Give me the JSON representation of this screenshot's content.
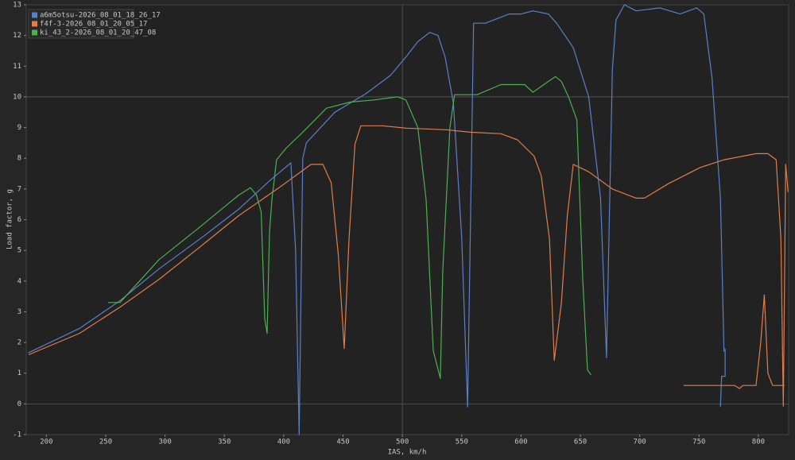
{
  "chart_data": {
    "type": "line",
    "xlabel": "IAS, km/h",
    "ylabel": "Load factor, g",
    "xlim": [
      183,
      825.5
    ],
    "ylim": [
      -1,
      13
    ],
    "xticks": [
      200,
      250,
      300,
      350,
      400,
      450,
      500,
      550,
      600,
      650,
      700,
      750,
      800
    ],
    "yticks": [
      -1,
      0,
      1,
      2,
      3,
      4,
      5,
      6,
      7,
      8,
      9,
      10,
      11,
      12,
      13
    ],
    "grid": {
      "x": [
        500
      ],
      "y": [
        0,
        10
      ]
    },
    "legend": "upper left",
    "series": [
      {
        "name": "a6m5otsu-2026_08_01_18_26_17",
        "color": "#5b7fc7",
        "x": [
          184.6,
          228,
          262,
          295,
          329,
          362,
          389,
          406,
          410,
          413,
          416,
          419,
          443,
          469,
          490,
          503,
          513,
          523,
          530,
          536,
          543,
          550,
          555,
          560,
          570,
          590,
          600,
          610,
          623,
          630,
          644,
          657,
          667,
          672,
          677,
          680,
          687,
          697,
          717,
          734,
          748,
          754,
          761,
          768,
          771,
          null,
          768,
          769,
          772,
          772
        ],
        "values": [
          1.66,
          2.46,
          3.36,
          4.4,
          5.36,
          6.34,
          7.3,
          7.85,
          5.0,
          -1.0,
          8.0,
          8.5,
          9.5,
          10.1,
          10.7,
          11.3,
          11.8,
          12.1,
          12.0,
          11.3,
          9.8,
          5.4,
          -0.1,
          12.4,
          12.4,
          12.7,
          12.7,
          12.8,
          12.7,
          12.4,
          11.6,
          10.0,
          6.7,
          1.5,
          10.9,
          12.5,
          13.0,
          12.8,
          12.9,
          12.7,
          12.9,
          12.7,
          10.6,
          6.7,
          1.7,
          null,
          -0.1,
          0.9,
          0.9,
          1.8
        ]
      },
      {
        "name": "f4f-3-2026_08_01_20_05_17",
        "color": "#e07d4a",
        "x": [
          185,
          228,
          262,
          295,
          329,
          362,
          396,
          423,
          433,
          440,
          446,
          451,
          455,
          460,
          465,
          483,
          503,
          537,
          557,
          583,
          597,
          611,
          617,
          624,
          628,
          634,
          639,
          644,
          657,
          677,
          697,
          704,
          724,
          751,
          771,
          798,
          808,
          815,
          819,
          821,
          823,
          825,
          null,
          737,
          780,
          784,
          787,
          798,
          802,
          805,
          808,
          812,
          822
        ],
        "values": [
          1.6,
          2.3,
          3.15,
          4.06,
          5.1,
          6.13,
          7.04,
          7.8,
          7.8,
          7.2,
          4.84,
          1.8,
          5.36,
          8.46,
          9.06,
          9.06,
          8.98,
          8.93,
          8.85,
          8.8,
          8.6,
          8.07,
          7.43,
          5.36,
          1.42,
          3.3,
          6.13,
          7.8,
          7.56,
          7.0,
          6.7,
          6.7,
          7.17,
          7.7,
          7.95,
          8.15,
          8.15,
          7.95,
          5.36,
          -0.08,
          7.8,
          6.9,
          null,
          0.6,
          0.6,
          0.5,
          0.6,
          0.6,
          2.0,
          3.55,
          1.0,
          0.6,
          0.6
        ]
      },
      {
        "name": "ki_43_2-2026_08_01_20_47_08",
        "color": "#4caf50",
        "x": [
          252,
          262,
          295,
          329,
          362,
          372,
          377,
          381,
          384,
          386,
          388,
          390,
          394,
          402,
          416,
          436,
          456,
          476,
          496,
          503,
          513,
          520,
          526,
          532,
          534,
          540,
          544,
          563,
          583,
          603,
          610,
          623,
          629,
          634,
          640,
          647,
          652,
          656,
          659
        ],
        "values": [
          3.3,
          3.3,
          4.7,
          5.75,
          6.8,
          7.04,
          6.8,
          6.26,
          2.77,
          2.3,
          5.6,
          6.65,
          7.95,
          8.33,
          8.85,
          9.63,
          9.83,
          9.9,
          10.0,
          9.9,
          9.0,
          6.65,
          1.73,
          0.83,
          4.32,
          9.0,
          10.07,
          10.07,
          10.4,
          10.4,
          10.15,
          10.5,
          10.66,
          10.5,
          10.0,
          9.25,
          4.06,
          1.1,
          0.95
        ]
      }
    ]
  }
}
